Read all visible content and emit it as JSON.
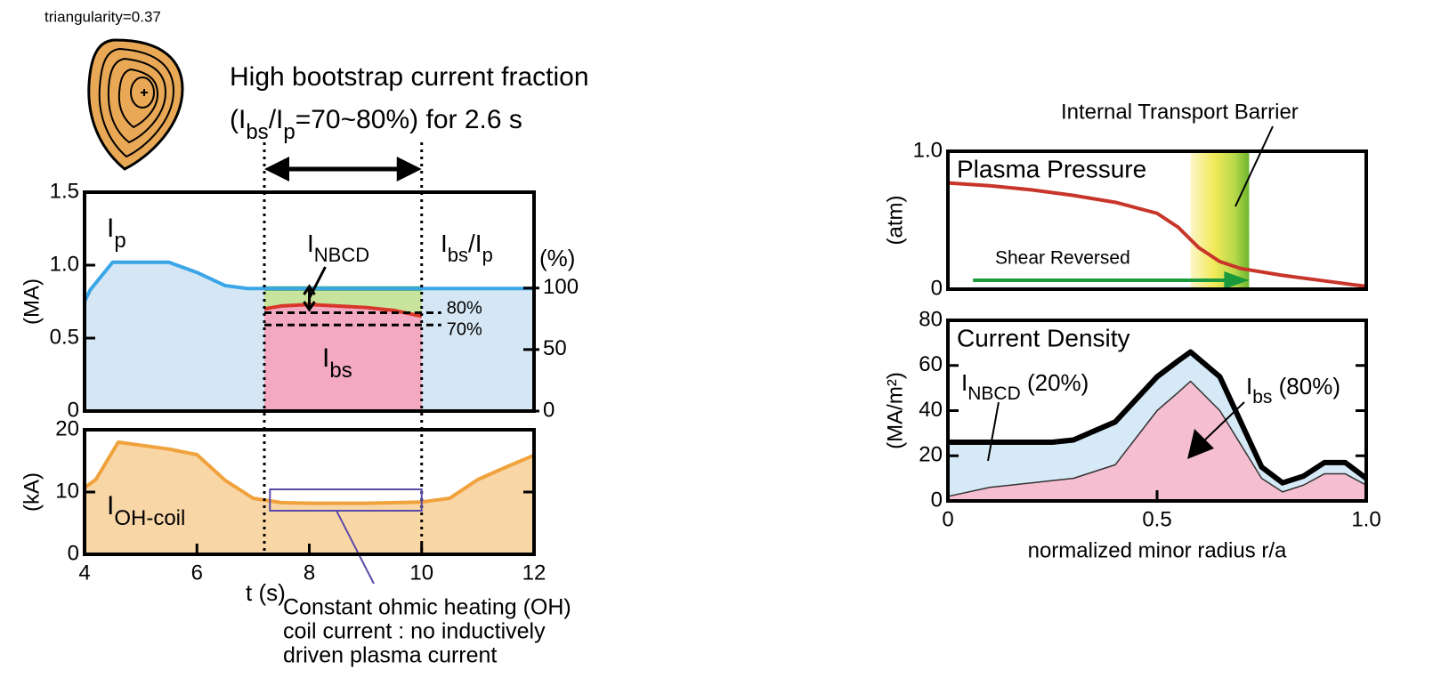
{
  "header": {
    "triangularity": "triangularity=0.37"
  },
  "chart_data": [
    {
      "type": "area",
      "headline": "High bootstrap current fraction",
      "headline2": [
        {
          "text": "(I"
        },
        {
          "text": "bs",
          "sub": true
        },
        {
          "text": "/I"
        },
        {
          "text": "p",
          "sub": true
        },
        {
          "text": "=70~80%) for 2.6 s"
        }
      ],
      "ylabel": "(MA)",
      "y2label": "(%)",
      "xlim": [
        4,
        12
      ],
      "ylim": [
        0,
        1.5
      ],
      "yticks": [
        0,
        0.5,
        {
          "value": 1,
          "label": "1.0"
        },
        1.5
      ],
      "y2lim": [
        0,
        178
      ],
      "y2ticks": [
        0,
        50,
        100
      ],
      "window": [
        7.2,
        10
      ],
      "series": [
        {
          "color": "#3aa6e8",
          "fill": "#d5e7f5",
          "line_width": 4,
          "x": [
            4,
            4.1,
            4.5,
            5.5,
            6,
            6.5,
            6.9,
            7.2,
            10,
            12
          ],
          "values": [
            0.75,
            0.83,
            1.02,
            1.02,
            0.95,
            0.86,
            0.84,
            0.84,
            0.84,
            0.84
          ]
        },
        {
          "color": "#d9362b",
          "fill": "#f4a9c3",
          "band_color": "#c8e39b",
          "band_edge": "#2fa84a",
          "line_width": 4,
          "x": [
            7.2,
            7.5,
            8,
            8.5,
            9,
            9.5,
            10
          ],
          "values": [
            0.7,
            0.72,
            0.73,
            0.72,
            0.71,
            0.69,
            0.65
          ]
        }
      ],
      "reference_lines": [
        {
          "value": 80,
          "label": "80%"
        },
        {
          "value": 70,
          "label": "70%"
        }
      ],
      "label_ip": [
        {
          "text": "I"
        },
        {
          "text": "p",
          "sub": true
        }
      ],
      "label_nbcd": [
        {
          "text": "I"
        },
        {
          "text": "NBCD",
          "sub": true
        }
      ],
      "label_fraction": [
        {
          "text": "I"
        },
        {
          "text": "bs",
          "sub": true
        },
        {
          "text": "/I"
        },
        {
          "text": "p",
          "sub": true
        }
      ],
      "label_bs": [
        {
          "text": "I"
        },
        {
          "text": "bs",
          "sub": true
        }
      ]
    },
    {
      "type": "area",
      "xlabel": "t (s)",
      "ylabel": "(kA)",
      "xlim": [
        4,
        12
      ],
      "xticks": [
        4,
        6,
        8,
        10,
        12
      ],
      "ylim": [
        0,
        20
      ],
      "yticks": [
        0,
        10,
        20
      ],
      "x": [
        4,
        4.2,
        4.6,
        5.5,
        6,
        6.5,
        7,
        7.5,
        8,
        9,
        10,
        10.5,
        11,
        11.5,
        12
      ],
      "series": [
        {
          "color": "#f0a23c",
          "fill": "#f9d6a6",
          "line_width": 4,
          "values": [
            10.7,
            12,
            18,
            16.9,
            16,
            11.9,
            9,
            8.3,
            8.2,
            8.2,
            8.4,
            9,
            12,
            14,
            15.9
          ]
        }
      ],
      "label_oh": [
        {
          "text": "I"
        },
        {
          "text": "OH-coil",
          "sub": true
        }
      ],
      "highlight": [
        7.3,
        10
      ],
      "note": [
        "Constant ohmic heating (OH)",
        "coil current : no inductively",
        "driven plasma current"
      ]
    },
    {
      "type": "line",
      "title": "Plasma Pressure",
      "ylabel": "(atm)",
      "xlim": [
        0,
        1
      ],
      "ylim": [
        0,
        1
      ],
      "yticks": [
        0,
        {
          "value": 1,
          "label": "1.0"
        }
      ],
      "x": [
        0,
        0.1,
        0.2,
        0.3,
        0.4,
        0.5,
        0.55,
        0.6,
        0.65,
        0.7,
        0.8,
        0.9,
        1.0
      ],
      "series": [
        {
          "color": "#c8352a",
          "line_width": 4,
          "values": [
            0.77,
            0.75,
            0.72,
            0.68,
            0.63,
            0.55,
            0.45,
            0.3,
            0.2,
            0.15,
            0.1,
            0.06,
            0.02
          ]
        }
      ],
      "itb_label": "Internal Transport Barrier",
      "itb_range": [
        0.58,
        0.72
      ],
      "shear_label": "Shear Reversed",
      "shear_range": [
        0.06,
        0.72
      ],
      "shear_color": "#1a9a3c"
    },
    {
      "type": "area",
      "title": "Current Density",
      "xlabel": "normalized minor radius r/a",
      "ylabel": "(MA/m²)",
      "xlim": [
        0,
        1
      ],
      "xticks": [
        0,
        0.5,
        {
          "value": 1,
          "label": "1.0"
        }
      ],
      "ylim": [
        0,
        80
      ],
      "yticks": [
        0,
        20,
        40,
        60,
        80
      ],
      "x": [
        0,
        0.1,
        0.2,
        0.25,
        0.3,
        0.4,
        0.5,
        0.55,
        0.58,
        0.65,
        0.7,
        0.75,
        0.8,
        0.85,
        0.9,
        0.95,
        1.0
      ],
      "series": [
        {
          "color": "#000000",
          "fill": "#d6e9f6",
          "line_width": 6,
          "values": [
            26,
            26,
            26,
            26,
            27,
            35,
            55,
            62,
            66,
            55,
            35,
            15,
            8,
            11,
            17,
            17,
            10
          ]
        },
        {
          "color": "#333333",
          "fill": "#f5bfd1",
          "line_width": 1.5,
          "values": [
            2,
            6,
            8,
            9,
            10,
            16,
            40,
            48,
            53,
            40,
            25,
            10,
            4,
            7,
            12,
            12,
            7
          ]
        }
      ],
      "label_nbcd": [
        {
          "text": "I"
        },
        {
          "text": "NBCD",
          "sub": true
        },
        {
          "text": " (20%)"
        }
      ],
      "label_bs": [
        {
          "text": "I"
        },
        {
          "text": "bs",
          "sub": true
        },
        {
          "text": " (80%)"
        }
      ]
    }
  ]
}
